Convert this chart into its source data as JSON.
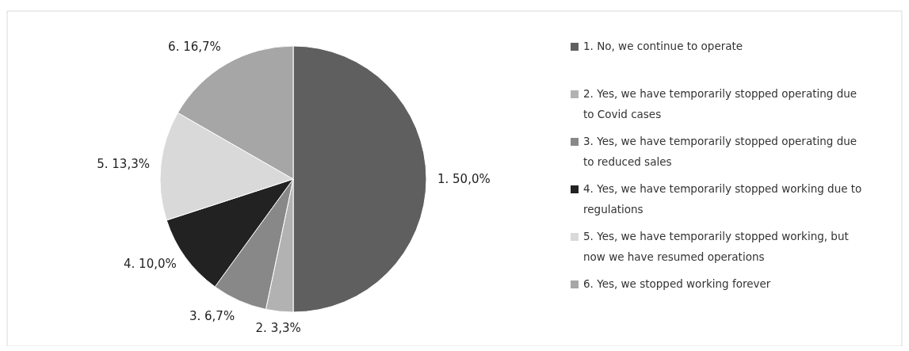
{
  "chart_data": {
    "type": "pie",
    "categories": [
      "1. No, we continue to operate",
      "2. Yes, we have temporarily stopped operating due to Covid cases",
      "3. Yes, we have temporarily stopped operating due to reduced sales",
      "4. Yes, we have temporarily stopped working due to regulations",
      "5. Yes, we have temporarily stopped working, but now we have resumed operations",
      "6. Yes, we stopped working forever"
    ],
    "values": [
      50.0,
      3.3,
      6.7,
      10.0,
      13.3,
      16.7
    ],
    "colors": [
      "#5f5f5f",
      "#b2b2b2",
      "#888888",
      "#222222",
      "#d9d9d9",
      "#a6a6a6"
    ],
    "value_labels": [
      "1. 50,0%",
      "2. 3,3%",
      "3. 6,7%",
      "4. 10,0%",
      "5. 13,3%",
      "6. 16,7%"
    ],
    "legend": "right"
  }
}
